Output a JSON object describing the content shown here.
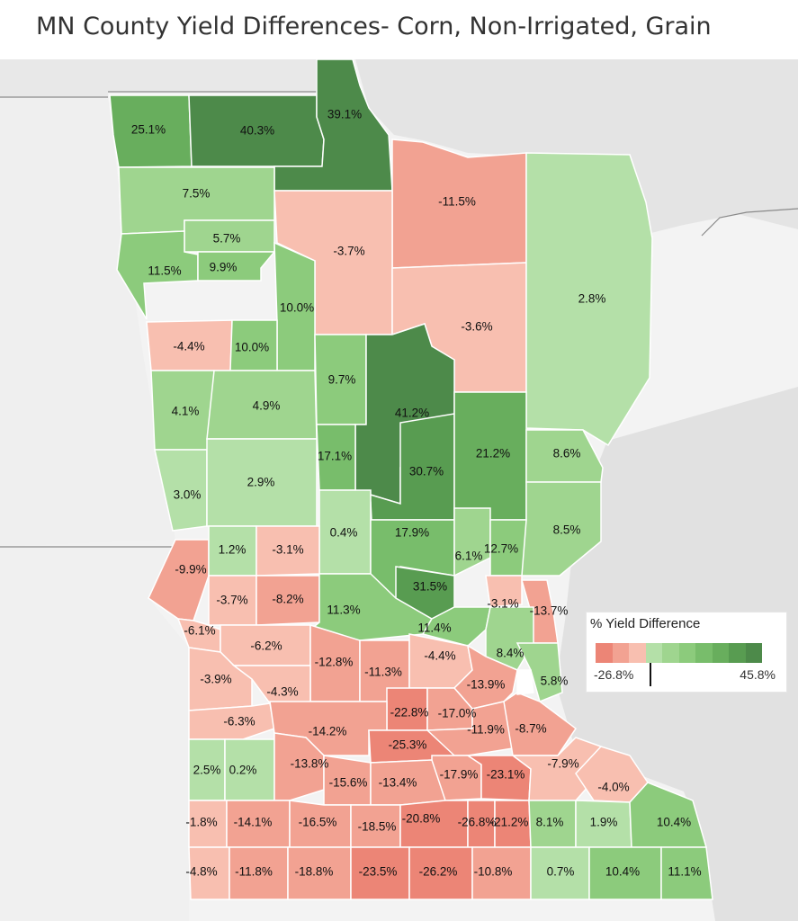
{
  "title": "MN County Yield Differences- Corn, Non-Irrigated, Grain",
  "legend": {
    "title": "% Yield Difference",
    "min_label": "-26.8%",
    "max_label": "45.8%",
    "min": -26.8,
    "max": 45.8,
    "zero_tick": 0,
    "ramp": [
      "#ec8576",
      "#f2a292",
      "#f8bfb0",
      "#b4e0a8",
      "#9fd58f",
      "#8ccb7c",
      "#78bd6b",
      "#68ae5d",
      "#589c51",
      "#4d8a4a"
    ]
  },
  "colors": {
    "background": "#f3f3f3",
    "border": "#8a8a8a",
    "label": "#111111"
  },
  "counties": [
    {
      "name": "Kittson",
      "label": "25.1%",
      "value": 25.1
    },
    {
      "name": "Roseau",
      "label": "40.3%",
      "value": 40.3
    },
    {
      "name": "Lake of the Woods",
      "label": "39.1%",
      "value": 39.1
    },
    {
      "name": "Koochiching",
      "label": "-11.5%",
      "value": -11.5
    },
    {
      "name": "Marshall",
      "label": "7.5%",
      "value": 7.5
    },
    {
      "name": "Pennington",
      "label": "5.7%",
      "value": 5.7
    },
    {
      "name": "Beltrami",
      "label": "-3.7%",
      "value": -3.7
    },
    {
      "name": "Polk",
      "label": "11.5%",
      "value": 11.5
    },
    {
      "name": "Red Lake",
      "label": "9.9%",
      "value": 9.9
    },
    {
      "name": "Clearwater",
      "label": "10.0%",
      "value": 10.0
    },
    {
      "name": "Itasca",
      "label": "-3.6%",
      "value": -3.6
    },
    {
      "name": "St. Louis",
      "label": "2.8%",
      "value": 2.8
    },
    {
      "name": "Norman",
      "label": "-4.4%",
      "value": -4.4
    },
    {
      "name": "Mahnomen",
      "label": "10.0%",
      "value": 10.0
    },
    {
      "name": "Hubbard",
      "label": "9.7%",
      "value": 9.7
    },
    {
      "name": "Cass",
      "label": "41.2%",
      "value": 41.2
    },
    {
      "name": "Clay",
      "label": "4.1%",
      "value": 4.1
    },
    {
      "name": "Becker",
      "label": "4.9%",
      "value": 4.9
    },
    {
      "name": "Wadena",
      "label": "17.1%",
      "value": 17.1
    },
    {
      "name": "Crow Wing",
      "label": "30.7%",
      "value": 30.7
    },
    {
      "name": "Aitkin",
      "label": "21.2%",
      "value": 21.2
    },
    {
      "name": "Carlton",
      "label": "8.6%",
      "value": 8.6
    },
    {
      "name": "Wilkin",
      "label": "3.0%",
      "value": 3.0
    },
    {
      "name": "Otter Tail",
      "label": "2.9%",
      "value": 2.9
    },
    {
      "name": "Todd",
      "label": "0.4%",
      "value": 0.4
    },
    {
      "name": "Morrison",
      "label": "17.9%",
      "value": 17.9
    },
    {
      "name": "Pine",
      "label": "8.5%",
      "value": 8.5
    },
    {
      "name": "Mille Lacs",
      "label": "6.1%",
      "value": 6.1
    },
    {
      "name": "Kanabec",
      "label": "12.7%",
      "value": 12.7
    },
    {
      "name": "Traverse",
      "label": "-9.9%",
      "value": -9.9
    },
    {
      "name": "Grant",
      "label": "1.2%",
      "value": 1.2
    },
    {
      "name": "Douglas",
      "label": "-3.1%",
      "value": -3.1
    },
    {
      "name": "Stevens",
      "label": "-3.7%",
      "value": -3.7
    },
    {
      "name": "Pope",
      "label": "-8.2%",
      "value": -8.2
    },
    {
      "name": "Stearns",
      "label": "11.3%",
      "value": 11.3
    },
    {
      "name": "Benton",
      "label": "31.5%",
      "value": 31.5
    },
    {
      "name": "Isanti",
      "label": "-3.1%",
      "value": -3.1
    },
    {
      "name": "Chisago",
      "label": "-13.7%",
      "value": -13.7
    },
    {
      "name": "Big Stone",
      "label": "-6.1%",
      "value": -6.1
    },
    {
      "name": "Swift",
      "label": "-6.2%",
      "value": -6.2
    },
    {
      "name": "Sherburne",
      "label": "11.4%",
      "value": 11.4
    },
    {
      "name": "Anoka",
      "label": "8.4%",
      "value": 8.4
    },
    {
      "name": "Kandiyohi",
      "label": "-12.8%",
      "value": -12.8
    },
    {
      "name": "Meeker",
      "label": "-11.3%",
      "value": -11.3
    },
    {
      "name": "Wright",
      "label": "-4.4%",
      "value": -4.4
    },
    {
      "name": "Lac qui Parle",
      "label": "-3.9%",
      "value": -3.9
    },
    {
      "name": "Chippewa",
      "label": "-4.3%",
      "value": -4.3
    },
    {
      "name": "Hennepin",
      "label": "-13.9%",
      "value": -13.9
    },
    {
      "name": "Washington",
      "label": "5.8%",
      "value": 5.8
    },
    {
      "name": "McLeod",
      "label": "-22.8%",
      "value": -22.8
    },
    {
      "name": "Carver",
      "label": "-17.0%",
      "value": -17.0
    },
    {
      "name": "Yellow Medicine",
      "label": "-6.3%",
      "value": -6.3
    },
    {
      "name": "Renville",
      "label": "-14.2%",
      "value": -14.2
    },
    {
      "name": "Scott",
      "label": "-11.9%",
      "value": -11.9
    },
    {
      "name": "Dakota",
      "label": "-8.7%",
      "value": -8.7
    },
    {
      "name": "Sibley",
      "label": "-25.3%",
      "value": -25.3
    },
    {
      "name": "Lincoln",
      "label": "2.5%",
      "value": 2.5
    },
    {
      "name": "Lyon",
      "label": "0.2%",
      "value": 0.2
    },
    {
      "name": "Redwood",
      "label": "-13.8%",
      "value": -13.8
    },
    {
      "name": "Le Sueur",
      "label": "-17.9%",
      "value": -17.9
    },
    {
      "name": "Rice",
      "label": "-23.1%",
      "value": -23.1
    },
    {
      "name": "Goodhue",
      "label": "-7.9%",
      "value": -7.9
    },
    {
      "name": "Brown",
      "label": "-15.6%",
      "value": -15.6
    },
    {
      "name": "Nicollet",
      "label": "-13.4%",
      "value": -13.4
    },
    {
      "name": "Wabasha",
      "label": "-4.0%",
      "value": -4.0
    },
    {
      "name": "Pipestone",
      "label": "-1.8%",
      "value": -1.8
    },
    {
      "name": "Murray",
      "label": "-14.1%",
      "value": -14.1
    },
    {
      "name": "Cottonwood",
      "label": "-16.5%",
      "value": -16.5
    },
    {
      "name": "Watonwan",
      "label": "-18.5%",
      "value": -18.5
    },
    {
      "name": "Blue Earth",
      "label": "-20.8%",
      "value": -20.8
    },
    {
      "name": "Waseca",
      "label": "-26.8%",
      "value": -26.8
    },
    {
      "name": "Steele",
      "label": "-21.2%",
      "value": -21.2
    },
    {
      "name": "Dodge",
      "label": "8.1%",
      "value": 8.1
    },
    {
      "name": "Olmsted",
      "label": "1.9%",
      "value": 1.9
    },
    {
      "name": "Winona",
      "label": "10.4%",
      "value": 10.4
    },
    {
      "name": "Rock",
      "label": "-4.8%",
      "value": -4.8
    },
    {
      "name": "Nobles",
      "label": "-11.8%",
      "value": -11.8
    },
    {
      "name": "Jackson",
      "label": "-18.8%",
      "value": -18.8
    },
    {
      "name": "Martin",
      "label": "-23.5%",
      "value": -23.5
    },
    {
      "name": "Faribault",
      "label": "-26.2%",
      "value": -26.2
    },
    {
      "name": "Freeborn",
      "label": "-10.8%",
      "value": -10.8
    },
    {
      "name": "Mower",
      "label": "0.7%",
      "value": 0.7
    },
    {
      "name": "Fillmore",
      "label": "10.4%",
      "value": 10.4
    },
    {
      "name": "Houston",
      "label": "11.1%",
      "value": 11.1
    },
    {
      "name": "Ramsey",
      "label": "",
      "value": null
    }
  ]
}
